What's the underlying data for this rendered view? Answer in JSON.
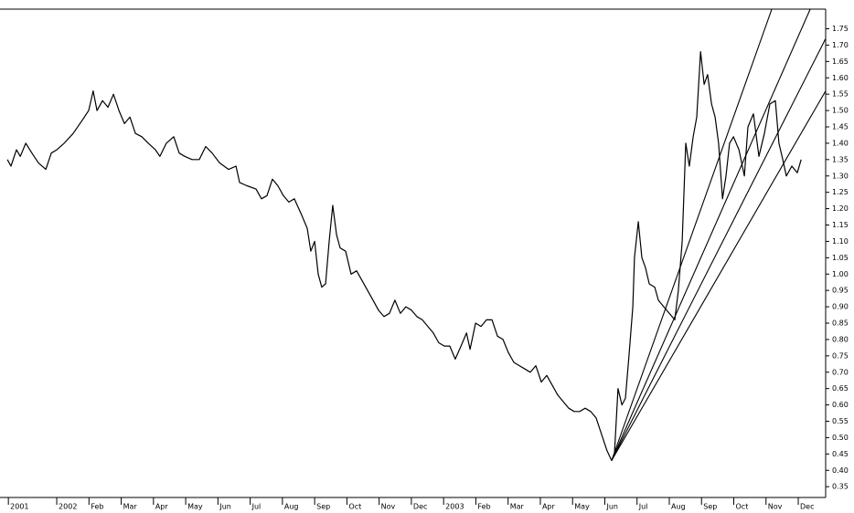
{
  "chart_data": {
    "type": "line",
    "color": "#000000",
    "xlim": [
      -0.76,
      24.85
    ],
    "ylim": [
      0.317,
      1.81
    ],
    "xticks": [
      {
        "value": -0.5,
        "label": "2001"
      },
      {
        "value": 1,
        "label": "2002"
      },
      {
        "value": 2,
        "label": "Feb"
      },
      {
        "value": 3,
        "label": "Mar"
      },
      {
        "value": 4,
        "label": "Apr"
      },
      {
        "value": 5,
        "label": "May"
      },
      {
        "value": 6,
        "label": "Jun"
      },
      {
        "value": 7,
        "label": "Jul"
      },
      {
        "value": 8,
        "label": "Aug"
      },
      {
        "value": 9,
        "label": "Sep"
      },
      {
        "value": 10,
        "label": "Oct"
      },
      {
        "value": 11,
        "label": "Nov"
      },
      {
        "value": 12,
        "label": "Dec"
      },
      {
        "value": 13,
        "label": "2003"
      },
      {
        "value": 14,
        "label": "Feb"
      },
      {
        "value": 15,
        "label": "Mar"
      },
      {
        "value": 16,
        "label": "Apr"
      },
      {
        "value": 17,
        "label": "May"
      },
      {
        "value": 18,
        "label": "Jun"
      },
      {
        "value": 19,
        "label": "Jul"
      },
      {
        "value": 20,
        "label": "Aug"
      },
      {
        "value": 21,
        "label": "Sep"
      },
      {
        "value": 22,
        "label": "Oct"
      },
      {
        "value": 23,
        "label": "Nov"
      },
      {
        "value": 24,
        "label": "Dec"
      }
    ],
    "yticks": [
      0.35,
      {
        "value": 0.4,
        "label": "0.40"
      },
      0.45,
      {
        "value": 0.5,
        "label": "0.50"
      },
      0.55,
      {
        "value": 0.6,
        "label": "0.60"
      },
      0.65,
      {
        "value": 0.7,
        "label": "0.70"
      },
      0.75,
      {
        "value": 0.8,
        "label": "0.80"
      },
      0.85,
      {
        "value": 0.9,
        "label": "0.90"
      },
      0.95,
      {
        "value": 1,
        "label": "1.00"
      },
      1.05,
      {
        "value": 1.1,
        "label": "1.10"
      },
      1.15,
      {
        "value": 1.2,
        "label": "1.20"
      },
      1.25,
      {
        "value": 1.3,
        "label": "1.30"
      },
      1.35,
      {
        "value": 1.4,
        "label": "1.40"
      },
      1.45,
      {
        "value": 1.5,
        "label": "1.50"
      },
      1.55,
      {
        "value": 1.6,
        "label": "1.60"
      },
      1.65,
      {
        "value": 1.7,
        "label": "1.70"
      },
      1.75
    ],
    "series": [
      {
        "color": "#000000",
        "x": [
          -0.53,
          -0.42,
          -0.25,
          -0.13,
          0.04,
          0.23,
          0.43,
          0.66,
          0.83,
          1.0,
          1.23,
          1.51,
          1.79,
          1.99,
          2.13,
          2.25,
          2.42,
          2.59,
          2.76,
          2.93,
          3.1,
          3.27,
          3.44,
          3.64,
          3.84,
          4.06,
          4.2,
          4.4,
          4.63,
          4.8,
          4.97,
          5.2,
          5.42,
          5.62,
          5.82,
          6.05,
          6.33,
          6.56,
          6.67,
          6.9,
          7.18,
          7.35,
          7.52,
          7.69,
          7.86,
          8.03,
          8.2,
          8.37,
          8.6,
          8.77,
          8.88,
          9.0,
          9.11,
          9.22,
          9.34,
          9.45,
          9.56,
          9.68,
          9.79,
          9.96,
          10.13,
          10.3,
          10.47,
          10.64,
          10.81,
          10.98,
          11.15,
          11.32,
          11.49,
          11.66,
          11.83,
          12.0,
          12.17,
          12.34,
          12.51,
          12.68,
          12.85,
          13.02,
          13.19,
          13.36,
          13.54,
          13.71,
          13.82,
          13.99,
          14.16,
          14.33,
          14.5,
          14.67,
          14.84,
          15.01,
          15.18,
          15.35,
          15.52,
          15.69,
          15.86,
          16.03,
          16.2,
          16.37,
          16.54,
          16.71,
          16.88,
          17.05,
          17.22,
          17.39,
          17.56,
          17.73,
          17.9,
          18.07,
          18.21,
          18.3,
          18.41,
          18.53,
          18.64,
          18.75,
          18.87,
          18.92,
          19.04,
          19.15,
          19.26,
          19.38,
          19.55,
          19.66,
          19.83,
          20.0,
          20.17,
          20.28,
          20.4,
          20.51,
          20.62,
          20.74,
          20.85,
          20.97,
          21.08,
          21.19,
          21.31,
          21.42,
          21.53,
          21.65,
          21.76,
          21.87,
          21.99,
          22.16,
          22.33,
          22.44,
          22.61,
          22.78,
          22.95,
          23.12,
          23.29,
          23.4,
          23.52,
          23.63,
          23.8,
          23.97,
          24.09
        ],
        "values": [
          1.35,
          1.33,
          1.38,
          1.36,
          1.4,
          1.37,
          1.34,
          1.32,
          1.37,
          1.38,
          1.4,
          1.43,
          1.47,
          1.5,
          1.56,
          1.5,
          1.53,
          1.51,
          1.55,
          1.5,
          1.46,
          1.48,
          1.43,
          1.42,
          1.4,
          1.38,
          1.36,
          1.4,
          1.42,
          1.37,
          1.36,
          1.35,
          1.35,
          1.39,
          1.37,
          1.34,
          1.32,
          1.33,
          1.28,
          1.27,
          1.26,
          1.23,
          1.24,
          1.29,
          1.27,
          1.24,
          1.22,
          1.23,
          1.18,
          1.14,
          1.07,
          1.1,
          1.0,
          0.96,
          0.97,
          1.1,
          1.21,
          1.12,
          1.08,
          1.07,
          1.0,
          1.01,
          0.98,
          0.95,
          0.92,
          0.89,
          0.87,
          0.88,
          0.92,
          0.88,
          0.9,
          0.89,
          0.87,
          0.86,
          0.84,
          0.82,
          0.79,
          0.78,
          0.78,
          0.74,
          0.78,
          0.82,
          0.77,
          0.85,
          0.84,
          0.86,
          0.86,
          0.81,
          0.8,
          0.76,
          0.73,
          0.72,
          0.71,
          0.7,
          0.72,
          0.67,
          0.69,
          0.66,
          0.63,
          0.61,
          0.59,
          0.58,
          0.58,
          0.59,
          0.58,
          0.56,
          0.51,
          0.46,
          0.43,
          0.45,
          0.65,
          0.6,
          0.62,
          0.75,
          0.9,
          1.05,
          1.16,
          1.05,
          1.02,
          0.97,
          0.96,
          0.92,
          0.9,
          0.88,
          0.86,
          0.95,
          1.1,
          1.4,
          1.33,
          1.42,
          1.48,
          1.68,
          1.58,
          1.61,
          1.52,
          1.48,
          1.4,
          1.23,
          1.3,
          1.4,
          1.42,
          1.38,
          1.3,
          1.45,
          1.49,
          1.36,
          1.43,
          1.52,
          1.53,
          1.4,
          1.35,
          1.3,
          1.33,
          1.31,
          1.35
        ]
      },
      {
        "color": "#000000",
        "x": [
          18.21,
          23.18
        ],
        "values": [
          0.43,
          1.81
        ]
      },
      {
        "color": "#000000",
        "x": [
          18.21,
          24.37
        ],
        "values": [
          0.43,
          1.81
        ]
      },
      {
        "color": "#000000",
        "x": [
          18.21,
          24.85
        ],
        "values": [
          0.43,
          1.72
        ]
      },
      {
        "color": "#000000",
        "x": [
          18.21,
          24.85
        ],
        "values": [
          0.43,
          1.56
        ]
      }
    ]
  }
}
